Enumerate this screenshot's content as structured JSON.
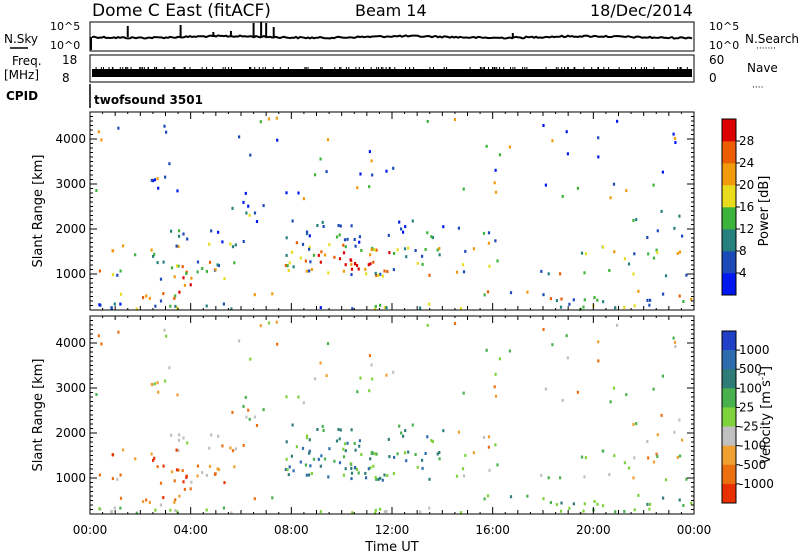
{
  "header": {
    "title": "Dome C East (fitACF)",
    "beam": "Beam 14",
    "date": "18/Dec/2014"
  },
  "strip_labels": {
    "nsky": "N.Sky",
    "nsearch": "N.Search",
    "freq": "Freq.",
    "freq_unit": "[MHz]",
    "nave": "Nave",
    "cpid": "CPID",
    "cpid_value": "twofsound 3501",
    "dots_nsearch": "·······",
    "dots_nave": "····",
    "nsky_ticks": [
      "10^5",
      "10^0"
    ],
    "nsearch_ticks": [
      "10^5",
      "10^0"
    ],
    "freq_ticks": [
      "18",
      "8"
    ],
    "nave_ticks": [
      "60",
      "0"
    ]
  },
  "chart_data": [
    {
      "type": "heatmap",
      "name": "power",
      "ylabel": "Slant Range [km]",
      "yticks": [
        "1000",
        "2000",
        "3000",
        "4000"
      ],
      "ylim": [
        200,
        4600
      ],
      "xlim": [
        0,
        24
      ],
      "colorbar": {
        "label": "Power [dB]",
        "ticks": [
          "4",
          "8",
          "12",
          "16",
          "20",
          "24",
          "28"
        ],
        "colors": [
          "#0018f0",
          "#1c4ab8",
          "#26807c",
          "#3cb43c",
          "#e8dc1c",
          "#f09a0c",
          "#ec5c00",
          "#dc0000"
        ]
      }
    },
    {
      "type": "heatmap",
      "name": "velocity",
      "ylabel": "Slant Range [km]",
      "yticks": [
        "1000",
        "2000",
        "3000",
        "4000"
      ],
      "ylim": [
        200,
        4600
      ],
      "xlim": [
        0,
        24
      ],
      "xlabel": "Time UT",
      "xticks": [
        "00:00",
        "04:00",
        "08:00",
        "12:00",
        "16:00",
        "20:00",
        "00:00"
      ],
      "colorbar": {
        "label": "Velocity [m s",
        "label_sup": "-1",
        "label_end": "]",
        "ticks": [
          "1000",
          "500",
          "100",
          "25",
          "-25",
          "-100",
          "-500",
          "-1000"
        ],
        "colors": [
          "#2040c8",
          "#2c6cac",
          "#2e7c78",
          "#48b04c",
          "#7ed23c",
          "#c0c0c0",
          "#f0a030",
          "#ec7010",
          "#e83000"
        ]
      }
    }
  ]
}
